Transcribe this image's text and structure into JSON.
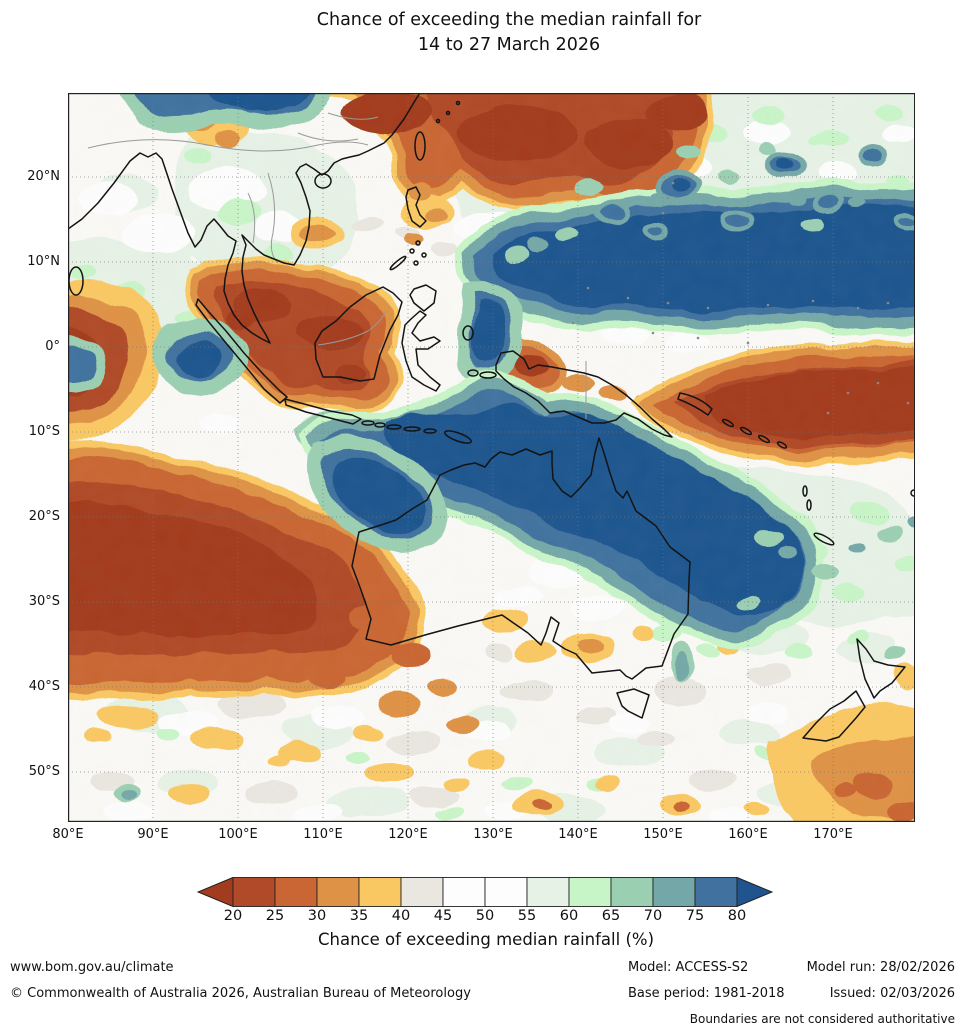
{
  "title": {
    "line1": "Chance of exceeding the median rainfall for",
    "line2": "14 to 27 March 2026"
  },
  "map": {
    "lat_ticks": [
      {
        "label": "20°N",
        "lat": 20
      },
      {
        "label": "10°N",
        "lat": 10
      },
      {
        "label": "0°",
        "lat": 0
      },
      {
        "label": "10°S",
        "lat": -10
      },
      {
        "label": "20°S",
        "lat": -20
      },
      {
        "label": "30°S",
        "lat": -30
      },
      {
        "label": "40°S",
        "lat": -40
      },
      {
        "label": "50°S",
        "lat": -50
      }
    ],
    "lon_ticks": [
      {
        "label": "80°E",
        "lon": 80
      },
      {
        "label": "90°E",
        "lon": 90
      },
      {
        "label": "100°E",
        "lon": 100
      },
      {
        "label": "110°E",
        "lon": 110
      },
      {
        "label": "120°E",
        "lon": 120
      },
      {
        "label": "130°E",
        "lon": 130
      },
      {
        "label": "140°E",
        "lon": 140
      },
      {
        "label": "150°E",
        "lon": 150
      },
      {
        "label": "160°E",
        "lon": 160
      },
      {
        "label": "170°E",
        "lon": 170
      }
    ]
  },
  "colorbar": {
    "title": "Chance of exceeding median rainfall (%)",
    "ticks": [
      20,
      25,
      30,
      35,
      40,
      45,
      50,
      55,
      60,
      65,
      70,
      75,
      80
    ],
    "segment_colors": [
      "#B04A28",
      "#C96633",
      "#DE9245",
      "#FAC863",
      "#EAE6E0",
      "#FDFDFD",
      "#FDFDFD",
      "#E7F2E6",
      "#C8F5C8",
      "#9BCFB2",
      "#74A8A8",
      "#41729F"
    ],
    "arrow_left_color": "#A33B1F",
    "arrow_right_color": "#1F548E"
  },
  "footer": {
    "url": "www.bom.gov.au/climate",
    "copyright": "© Commonwealth of Australia 2026, Australian Bureau of Meteorology",
    "model": "Model: ACCESS-S2",
    "model_run": "Model run: 28/02/2026",
    "base_period": "Base period: 1981-2018",
    "issued": "Issued: 02/03/2026",
    "disclaimer": "Boundaries are not considered authoritative"
  }
}
